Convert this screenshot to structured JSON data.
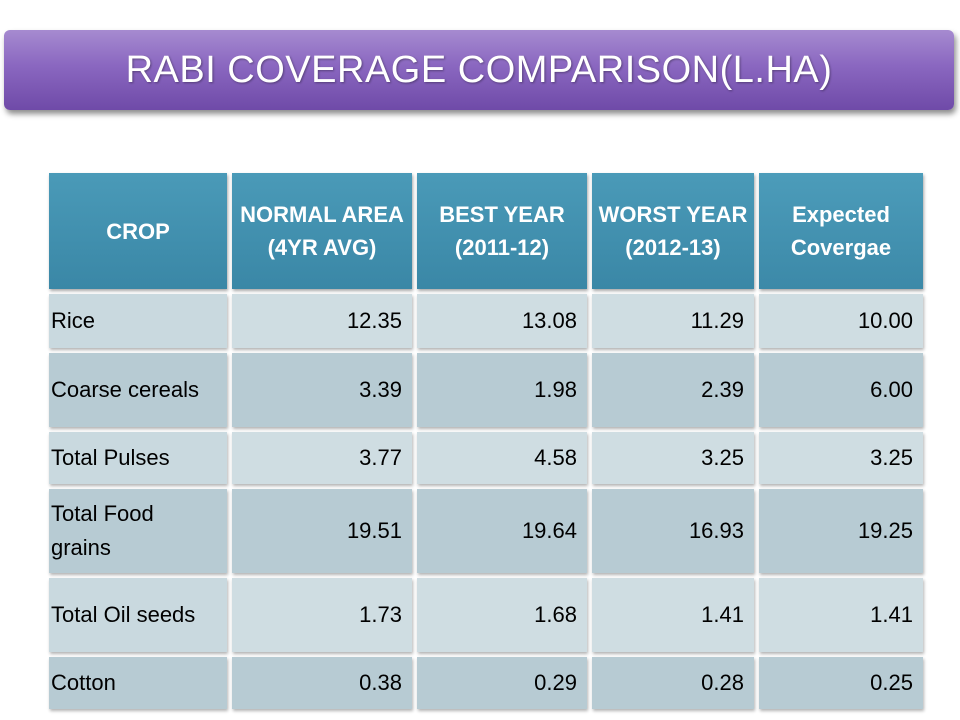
{
  "title": "RABI COVERAGE COMPARISON(L.HA)",
  "table": {
    "headers": [
      "CROP",
      "NORMAL AREA (4YR AVG)",
      "BEST YEAR (2011-12)",
      "WORST YEAR (2012-13)",
      "Expected Covergae"
    ],
    "rows": [
      {
        "crop": "Rice",
        "normal": "12.35",
        "best": "13.08",
        "worst": "11.29",
        "expected": "10.00"
      },
      {
        "crop": "Coarse cereals",
        "normal": "3.39",
        "best": "1.98",
        "worst": "2.39",
        "expected": "6.00"
      },
      {
        "crop": "Total Pulses",
        "normal": "3.77",
        "best": "4.58",
        "worst": "3.25",
        "expected": "3.25"
      },
      {
        "crop": "Total Food grains",
        "normal": "19.51",
        "best": "19.64",
        "worst": "16.93",
        "expected": "19.25"
      },
      {
        "crop": "Total Oil seeds",
        "normal": "1.73",
        "best": "1.68",
        "worst": "1.41",
        "expected": "1.41"
      },
      {
        "crop": "Cotton",
        "normal": "0.38",
        "best": "0.29",
        "worst": "0.28",
        "expected": "0.25"
      }
    ]
  },
  "colors": {
    "title_banner": "#8a67c0",
    "header_bg": "#3f8fae",
    "row_light": "#c9d9df",
    "row_dark": "#b7cbd3"
  }
}
